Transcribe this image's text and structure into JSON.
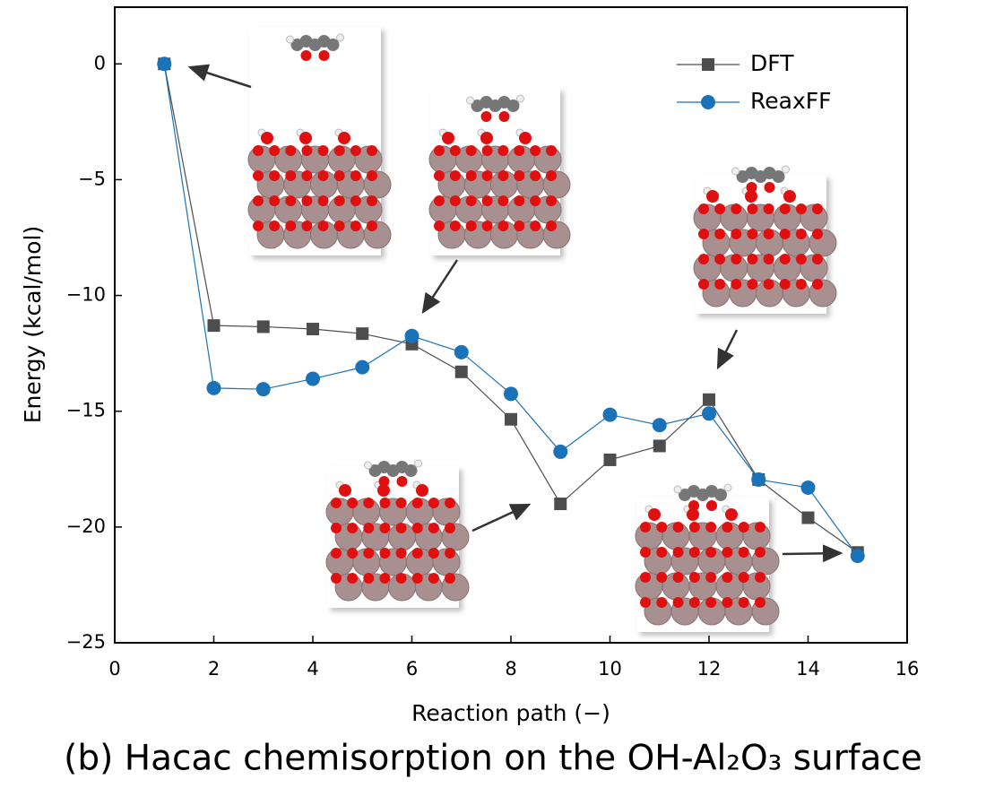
{
  "chart_data": {
    "type": "line",
    "xlabel": "Reaction path (−)",
    "ylabel": "Energy (kcal/mol)",
    "caption": "(b) Hacac chemisorption on the OH-Al₂O₃ surface",
    "x": [
      1,
      2,
      3,
      4,
      5,
      6,
      7,
      8,
      9,
      10,
      11,
      12,
      13,
      14,
      15
    ],
    "series": [
      {
        "name": "DFT",
        "color": "#4d4d4d",
        "marker": "square",
        "values": [
          0,
          -11.3,
          -11.35,
          -11.45,
          -11.65,
          -12.1,
          -13.3,
          -15.35,
          -19.0,
          -17.1,
          -16.5,
          -14.5,
          -17.95,
          -19.6,
          -21.1
        ]
      },
      {
        "name": "ReaxFF",
        "color": "#1a72b8",
        "marker": "circle",
        "values": [
          0,
          -14.0,
          -14.05,
          -13.6,
          -13.1,
          -11.75,
          -12.45,
          -14.25,
          -16.75,
          -15.15,
          -15.6,
          -15.1,
          -17.95,
          -18.3,
          -21.25
        ]
      }
    ],
    "xlim": [
      0,
      16
    ],
    "xticks": [
      0,
      2,
      4,
      6,
      8,
      10,
      12,
      14,
      16
    ],
    "ylim": [
      -25,
      2.45
    ],
    "yticks": [
      {
        "value": -25,
        "label": "−25"
      },
      {
        "value": -20,
        "label": "−20"
      },
      {
        "value": -15,
        "label": "−15"
      },
      {
        "value": -10,
        "label": "−10"
      },
      {
        "value": -5,
        "label": "−5"
      },
      0
    ],
    "legend": "upper right"
  }
}
